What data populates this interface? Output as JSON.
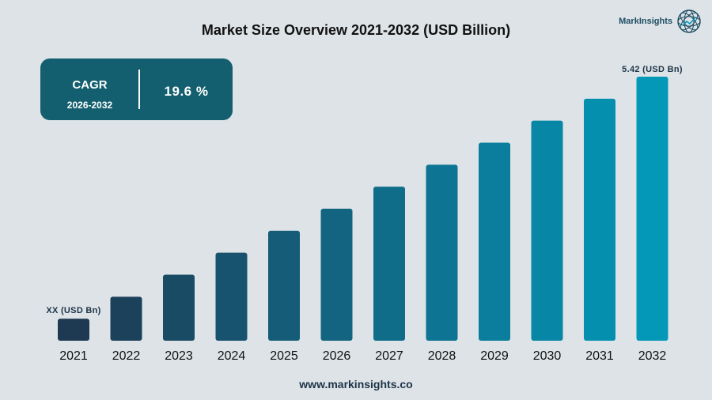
{
  "header": {
    "title": "Market Size Overview 2021-2032 (USD Billion)"
  },
  "logo": {
    "text": "MarkInsights"
  },
  "cagr": {
    "label": "CAGR",
    "period": "2026-2032",
    "value": "19.6 %"
  },
  "footer": {
    "url": "www.markinsights.co"
  },
  "chart_data": {
    "type": "bar",
    "title": "Market Size Overview 2021-2032 (USD Billion)",
    "categories": [
      "2021",
      "2022",
      "2023",
      "2024",
      "2025",
      "2026",
      "2027",
      "2028",
      "2029",
      "2030",
      "2031",
      "2032"
    ],
    "values": [
      1,
      2,
      3,
      4,
      5,
      6,
      7,
      8,
      9,
      10,
      11,
      12
    ],
    "value_note": "relative bar heights; only end labels printed",
    "data_labels": {
      "first": "XX (USD Bn)",
      "last": "5.42 (USD Bn)"
    },
    "colors": {
      "start": "#1e3a52",
      "end": "#0397b8"
    },
    "grid": false,
    "legend": "none"
  }
}
